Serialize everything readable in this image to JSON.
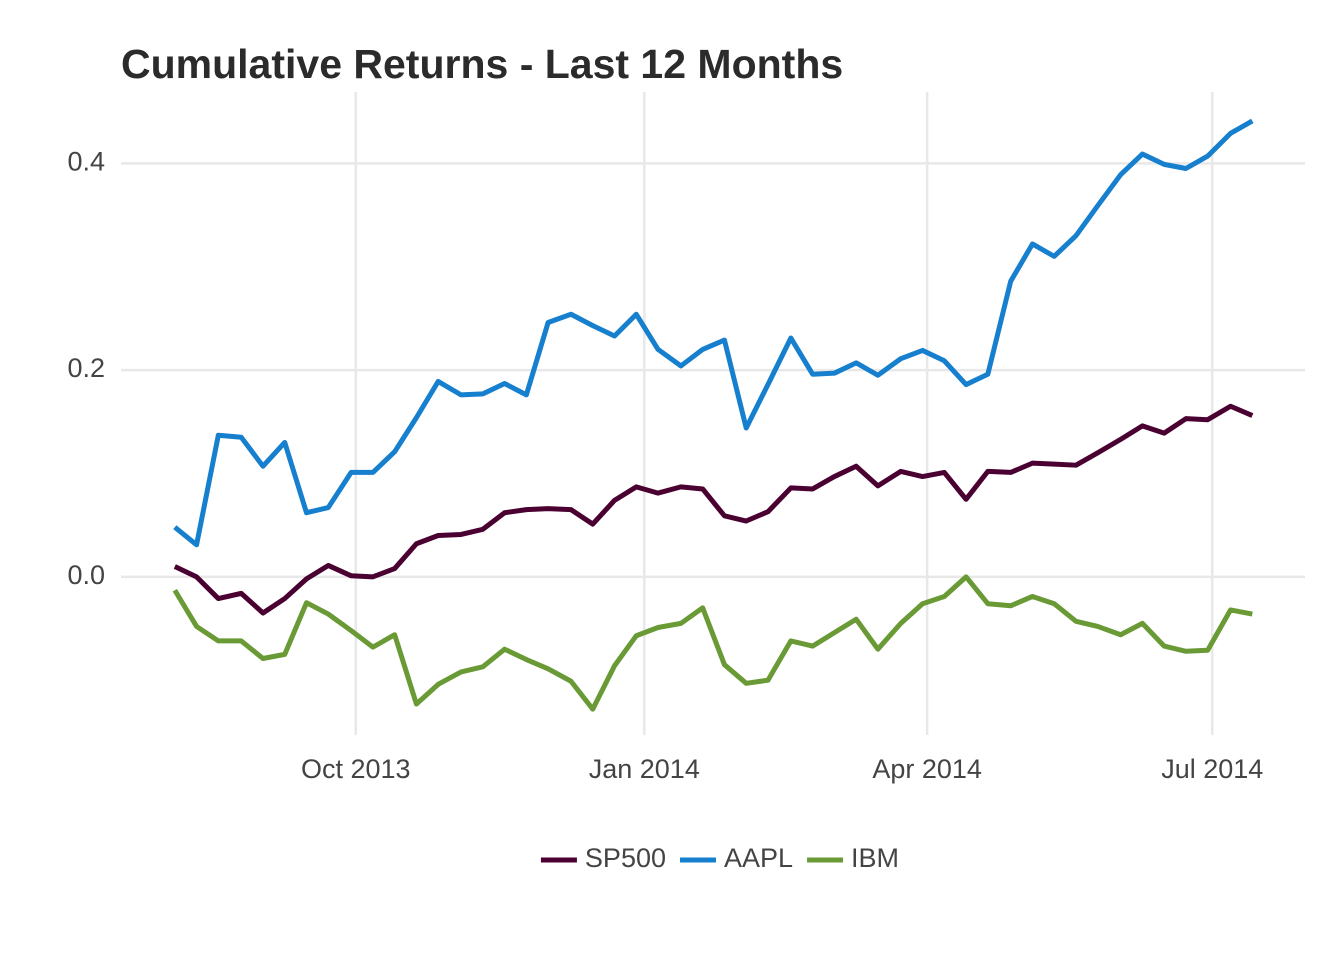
{
  "chart_data": {
    "type": "line",
    "title": "Cumulative Returns - Last 12 Months",
    "x": [
      2013.59,
      2013.609,
      2013.628,
      2013.648,
      2013.667,
      2013.686,
      2013.705,
      2013.724,
      2013.744,
      2013.763,
      2013.782,
      2013.801,
      2013.82,
      2013.84,
      2013.859,
      2013.878,
      2013.897,
      2013.916,
      2013.936,
      2013.955,
      2013.974,
      2013.993,
      2014.012,
      2014.032,
      2014.051,
      2014.07,
      2014.089,
      2014.108,
      2014.128,
      2014.147,
      2014.166,
      2014.185,
      2014.204,
      2014.224,
      2014.243,
      2014.262,
      2014.281,
      2014.3,
      2014.32,
      2014.339,
      2014.358,
      2014.377,
      2014.396,
      2014.416,
      2014.435,
      2014.454,
      2014.473,
      2014.492,
      2014.512,
      2014.531
    ],
    "series": [
      {
        "name": "SP500",
        "color": "#4a0030",
        "values": [
          0.01,
          0.0,
          -0.021,
          -0.016,
          -0.035,
          -0.021,
          -0.002,
          0.011,
          0.001,
          0.0,
          0.008,
          0.032,
          0.04,
          0.041,
          0.046,
          0.062,
          0.065,
          0.066,
          0.065,
          0.051,
          0.074,
          0.087,
          0.081,
          0.087,
          0.085,
          0.059,
          0.054,
          0.063,
          0.086,
          0.085,
          0.097,
          0.107,
          0.088,
          0.102,
          0.097,
          0.101,
          0.075,
          0.102,
          0.101,
          0.11,
          0.109,
          0.108,
          0.12,
          0.133,
          0.146,
          0.139,
          0.153,
          0.152,
          0.165,
          0.156
        ]
      },
      {
        "name": "AAPL",
        "color": "#167fce",
        "values": [
          0.048,
          0.031,
          0.137,
          0.135,
          0.107,
          0.13,
          0.062,
          0.067,
          0.101,
          0.101,
          0.121,
          0.154,
          0.189,
          0.176,
          0.177,
          0.187,
          0.176,
          0.246,
          0.254,
          0.243,
          0.233,
          0.254,
          0.22,
          0.204,
          0.22,
          0.229,
          0.144,
          0.186,
          0.231,
          0.196,
          0.197,
          0.207,
          0.195,
          0.211,
          0.219,
          0.209,
          0.186,
          0.196,
          0.286,
          0.322,
          0.31,
          0.33,
          0.359,
          0.389,
          0.409,
          0.399,
          0.395,
          0.407,
          0.429,
          0.441
        ]
      },
      {
        "name": "IBM",
        "color": "#6a9a35",
        "values": [
          -0.013,
          -0.048,
          -0.062,
          -0.062,
          -0.079,
          -0.075,
          -0.025,
          -0.036,
          -0.052,
          -0.068,
          -0.056,
          -0.123,
          -0.104,
          -0.092,
          -0.087,
          -0.07,
          -0.08,
          -0.089,
          -0.101,
          -0.128,
          -0.086,
          -0.057,
          -0.049,
          -0.045,
          -0.03,
          -0.085,
          -0.103,
          -0.1,
          -0.062,
          -0.067,
          -0.054,
          -0.041,
          -0.07,
          -0.045,
          -0.026,
          -0.019,
          0.0,
          -0.026,
          -0.028,
          -0.019,
          -0.026,
          -0.043,
          -0.048,
          -0.056,
          -0.045,
          -0.067,
          -0.072,
          -0.071,
          -0.032,
          -0.036
        ]
      }
    ],
    "xlim": [
      2013.543,
      2014.577
    ],
    "xticks": [
      {
        "value": 2013.748,
        "label": "Oct 2013"
      },
      {
        "value": 2014.0,
        "label": "Jan 2014"
      },
      {
        "value": 2014.247,
        "label": "Apr 2014"
      },
      {
        "value": 2014.496,
        "label": "Jul 2014"
      }
    ],
    "ylim": [
      -0.153,
      0.469
    ],
    "yticks": [
      {
        "value": 0,
        "label": "0.0"
      },
      0.2,
      0.4
    ],
    "grid": true,
    "legend": "bottom"
  }
}
